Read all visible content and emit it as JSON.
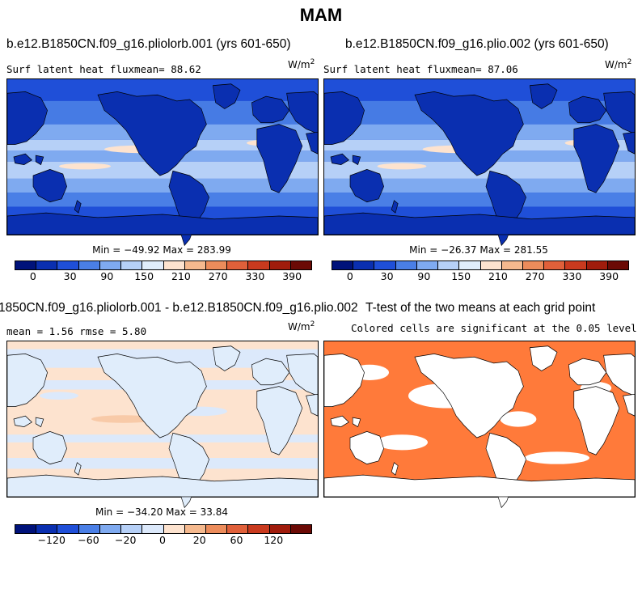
{
  "title": "MAM",
  "palette": {
    "fullfield": [
      "#00127a",
      "#0a2fb0",
      "#1f4fd8",
      "#4a7fe6",
      "#7faaf0",
      "#b6d0f7",
      "#e0edfb",
      "#fde3cf",
      "#f5b98e",
      "#ec8c5b",
      "#e0603a",
      "#c93a1e",
      "#a01c0c",
      "#6b0a05"
    ],
    "diff": [
      "#00127a",
      "#0a2fb0",
      "#1f4fd8",
      "#4a7fe6",
      "#7faaf0",
      "#b6d0f7",
      "#dce9fb",
      "#fde3cf",
      "#f5b98e",
      "#ec8c5b",
      "#e0603a",
      "#c93a1e",
      "#a01c0c",
      "#6b0a05"
    ],
    "significance": "#ff7a3a",
    "coastline": "#000000"
  },
  "panels": {
    "top_left": {
      "title": "b.e12.B1850CN.f09_g16.pliolorb.001 (yrs 601-650)",
      "subtitle": "Surf latent heat fluxmean=  88.62",
      "units_base": "W/m",
      "units_exp": "2",
      "minmax": "Min = −49.92 Max = 283.99",
      "ticks": [
        "0",
        "30",
        "90",
        "150",
        "210",
        "270",
        "330",
        "390"
      ]
    },
    "top_right": {
      "title": "b.e12.B1850CN.f09_g16.plio.002 (yrs 601-650)",
      "subtitle": "Surf latent heat fluxmean=  87.06",
      "units_base": "W/m",
      "units_exp": "2",
      "minmax": "Min = −26.37 Max = 281.55",
      "ticks": [
        "0",
        "30",
        "90",
        "150",
        "210",
        "270",
        "330",
        "390"
      ]
    },
    "bottom_left": {
      "title": "1850CN.f09_g16.pliolorb.001 - b.e12.B1850CN.f09_g16.plio.002",
      "subtitle": "mean =   1.56    rmse =   5.80",
      "units_base": "W/m",
      "units_exp": "2",
      "minmax": "Min = −34.20 Max = 33.84",
      "ticks": [
        "−120",
        "−60",
        "−20",
        "0",
        "20",
        "60",
        "120"
      ]
    },
    "bottom_right": {
      "title": "T-test of the two means at each grid point",
      "subtitle": "Colored cells are significant at the 0.05 level"
    }
  }
}
